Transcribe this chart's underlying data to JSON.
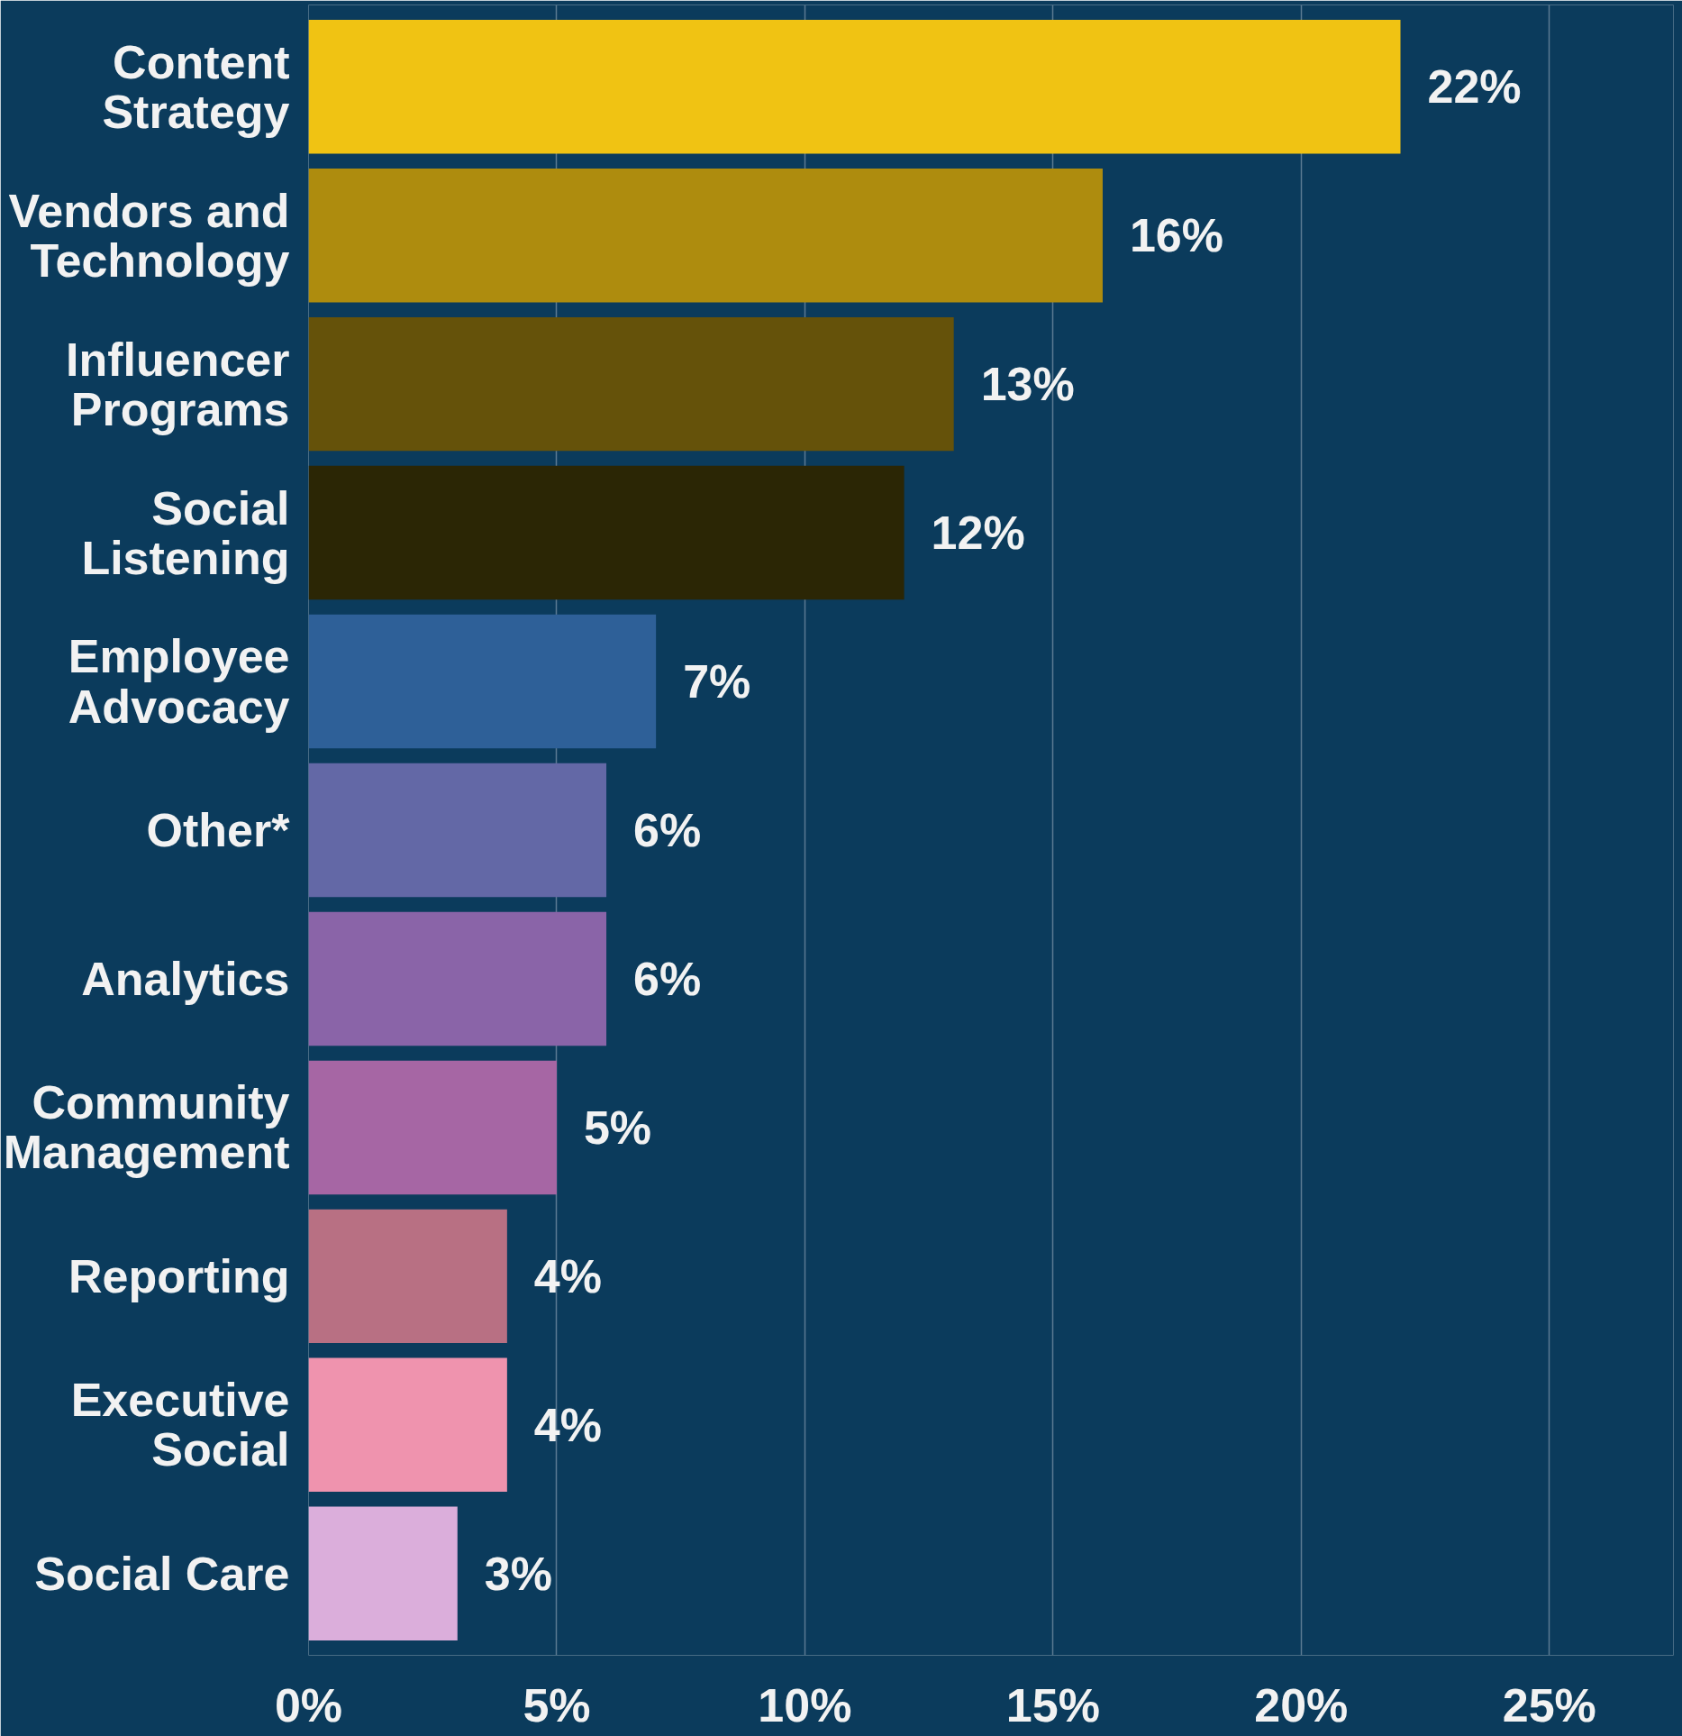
{
  "chart_data": {
    "type": "bar",
    "orientation": "horizontal",
    "categories": [
      "Content\nStrategy",
      "Vendors and\nTechnology",
      "Influencer\nPrograms",
      "Social\nListening",
      "Employee\nAdvocacy",
      "Other*",
      "Analytics",
      "Community\nManagement",
      "Reporting",
      "Executive\nSocial",
      "Social Care"
    ],
    "values": [
      22,
      16,
      13,
      12,
      7,
      6,
      6,
      5,
      4,
      4,
      3
    ],
    "colors": [
      "#f0c313",
      "#ae8c0e",
      "#65520a",
      "#2b2605",
      "#2e6098",
      "#6368a6",
      "#8a64a8",
      "#a666a4",
      "#b87083",
      "#ef93ae",
      "#dbaedb"
    ],
    "value_labels": [
      "22%",
      "16%",
      "13%",
      "12%",
      "7%",
      "6%",
      "6%",
      "5%",
      "4%",
      "4%",
      "3%"
    ],
    "xlim": [
      0,
      27.5
    ],
    "xticks": [
      {
        "value": 0,
        "label": "0%"
      },
      {
        "value": 5,
        "label": "5%"
      },
      {
        "value": 10,
        "label": "10%"
      },
      {
        "value": 15,
        "label": "15%"
      },
      {
        "value": 20,
        "label": "20%"
      },
      {
        "value": 25,
        "label": "25%"
      }
    ],
    "grid": "x"
  }
}
